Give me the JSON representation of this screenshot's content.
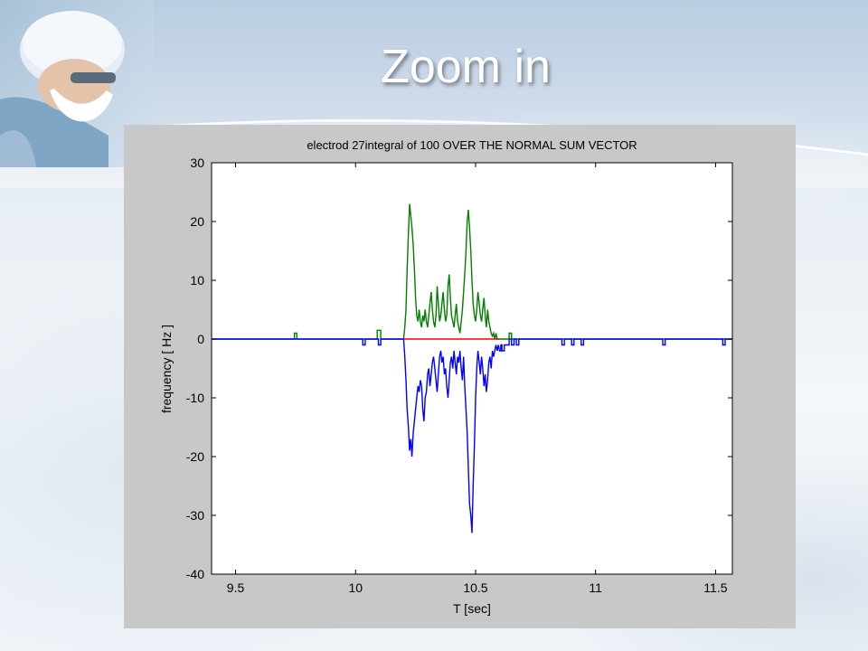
{
  "slide": {
    "title": "Zoom in"
  },
  "colors": {
    "positive_series": "#007f00",
    "negative_series": "#0000ff",
    "baseline": "#ff0000",
    "frame": "#c8c8c8",
    "plot_bg": "#ffffff"
  },
  "chart_data": {
    "type": "line",
    "title": "electrod 27integral of 100 OVER THE NORMAL SUM VECTOR",
    "xlabel": "T [sec]",
    "ylabel": "frequency [ Hz ]",
    "xlim": [
      9.4,
      11.57
    ],
    "ylim": [
      -40,
      30
    ],
    "xticks": [
      9.5,
      10,
      10.5,
      11,
      11.5
    ],
    "xtick_labels": [
      "9.5",
      "10",
      "10.5",
      "11",
      "11.5"
    ],
    "yticks": [
      30,
      20,
      10,
      0,
      -10,
      -20,
      -30,
      -40
    ],
    "ytick_labels": [
      "30",
      "20",
      "10",
      "0",
      "-10",
      "-20",
      "-30",
      "-40"
    ],
    "grid": false,
    "legend": "none",
    "series": [
      {
        "color": "#007f00",
        "x": [
          9.4,
          9.745,
          9.745,
          9.755,
          9.755,
          10.09,
          10.09,
          10.105,
          10.105,
          10.2,
          10.205,
          10.21,
          10.215,
          10.22,
          10.225,
          10.23,
          10.235,
          10.24,
          10.245,
          10.25,
          10.255,
          10.26,
          10.265,
          10.27,
          10.275,
          10.28,
          10.285,
          10.29,
          10.295,
          10.3,
          10.305,
          10.31,
          10.315,
          10.32,
          10.325,
          10.33,
          10.335,
          10.34,
          10.345,
          10.35,
          10.355,
          10.36,
          10.365,
          10.37,
          10.375,
          10.38,
          10.385,
          10.39,
          10.395,
          10.4,
          10.405,
          10.41,
          10.415,
          10.42,
          10.425,
          10.43,
          10.435,
          10.44,
          10.445,
          10.45,
          10.455,
          10.46,
          10.465,
          10.47,
          10.475,
          10.48,
          10.485,
          10.49,
          10.495,
          10.5,
          10.505,
          10.51,
          10.515,
          10.52,
          10.525,
          10.53,
          10.535,
          10.54,
          10.545,
          10.55,
          10.555,
          10.56,
          10.565,
          10.57,
          10.575,
          10.58,
          10.585,
          10.59,
          10.6,
          10.64,
          10.64,
          10.65,
          10.65,
          11.57
        ],
        "y": [
          0,
          0,
          1,
          1,
          0,
          0,
          1.5,
          1.5,
          0,
          0,
          2,
          5,
          12,
          18,
          23,
          21,
          19,
          16,
          12,
          7,
          4,
          3,
          5,
          3,
          2,
          4,
          3,
          5,
          3,
          2,
          4,
          6,
          8,
          5,
          3,
          2,
          4,
          9,
          6,
          3,
          4,
          6,
          8,
          5,
          3,
          4,
          9,
          11,
          7,
          4,
          3,
          2,
          4,
          6,
          3,
          2,
          1,
          3,
          5,
          8,
          11,
          15,
          20,
          22,
          19,
          15,
          10,
          6,
          4,
          3,
          5,
          8,
          6,
          4,
          3,
          5,
          7,
          4,
          2,
          5,
          3,
          2,
          1,
          0.5,
          1,
          0,
          1,
          0,
          0,
          0,
          1,
          1,
          0,
          0
        ]
      },
      {
        "color": "#0000ff",
        "x": [
          9.4,
          10.03,
          10.03,
          10.04,
          10.04,
          10.095,
          10.095,
          10.105,
          10.105,
          10.2,
          10.205,
          10.21,
          10.215,
          10.22,
          10.225,
          10.23,
          10.235,
          10.24,
          10.245,
          10.25,
          10.255,
          10.26,
          10.265,
          10.27,
          10.275,
          10.28,
          10.285,
          10.29,
          10.295,
          10.3,
          10.305,
          10.31,
          10.315,
          10.32,
          10.325,
          10.33,
          10.335,
          10.34,
          10.345,
          10.35,
          10.355,
          10.36,
          10.365,
          10.37,
          10.375,
          10.38,
          10.385,
          10.39,
          10.395,
          10.4,
          10.405,
          10.41,
          10.415,
          10.42,
          10.425,
          10.43,
          10.435,
          10.44,
          10.445,
          10.45,
          10.455,
          10.46,
          10.465,
          10.47,
          10.475,
          10.48,
          10.485,
          10.49,
          10.495,
          10.5,
          10.505,
          10.51,
          10.515,
          10.52,
          10.525,
          10.53,
          10.535,
          10.54,
          10.545,
          10.55,
          10.555,
          10.56,
          10.565,
          10.57,
          10.575,
          10.58,
          10.585,
          10.59,
          10.595,
          10.6,
          10.6,
          10.605,
          10.605,
          10.61,
          10.61,
          10.62,
          10.62,
          10.64,
          10.64,
          10.65,
          10.65,
          10.66,
          10.66,
          10.67,
          10.67,
          10.68,
          10.68,
          10.86,
          10.86,
          10.87,
          10.87,
          10.9,
          10.9,
          10.91,
          10.91,
          10.94,
          10.94,
          10.95,
          10.95,
          11.28,
          11.28,
          11.29,
          11.29,
          11.53,
          11.53,
          11.54,
          11.54,
          11.57
        ],
        "y": [
          0,
          0,
          -1,
          -1,
          0,
          0,
          -1,
          -1,
          0,
          0,
          -3,
          -7,
          -12,
          -15,
          -19,
          -17,
          -20,
          -16,
          -14,
          -12,
          -10,
          -8,
          -9,
          -7,
          -8,
          -12,
          -14,
          -10,
          -9,
          -6,
          -5,
          -8,
          -6,
          -4,
          -3,
          -5,
          -7,
          -9,
          -6,
          -3,
          -2,
          -4,
          -3,
          -6,
          -5,
          -8,
          -10,
          -7,
          -4,
          -3,
          -5,
          -2,
          -4,
          -6,
          -3,
          -4,
          -2,
          -5,
          -7,
          -3,
          -8,
          -12,
          -16,
          -22,
          -28,
          -30,
          -33,
          -25,
          -18,
          -10,
          -5,
          -2,
          -4,
          -6,
          -3,
          -5,
          -8,
          -6,
          -9,
          -7,
          -4,
          -3,
          -5,
          -2,
          -3,
          -2,
          -1,
          -2,
          -1,
          -2,
          -2,
          -2,
          -1,
          -1,
          -2,
          -2,
          -1,
          -1,
          0,
          0,
          -1,
          -1,
          0,
          0,
          -1,
          -1,
          0,
          0,
          -1,
          -1,
          0,
          0,
          -1,
          -1,
          0,
          0,
          -1,
          -1,
          0,
          0,
          -1,
          -1,
          0,
          0,
          -1,
          -1,
          0,
          0
        ]
      },
      {
        "color": "#ff0000",
        "x": [
          10.2,
          10.6
        ],
        "y": [
          0,
          0
        ]
      }
    ]
  }
}
